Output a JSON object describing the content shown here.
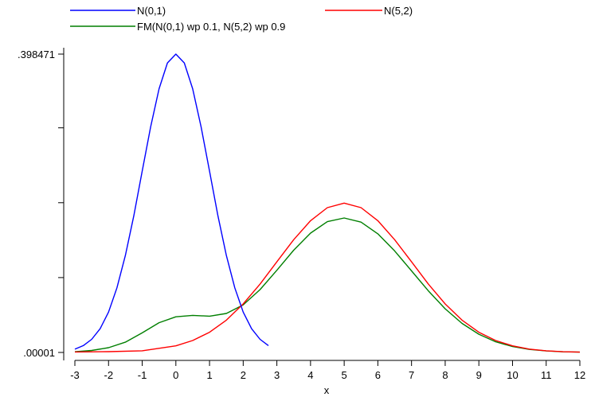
{
  "chart_data": {
    "type": "line",
    "title": "",
    "xlabel": "x",
    "ylabel": "",
    "xlim": [
      -3,
      12
    ],
    "ylim": [
      1e-05,
      0.398471
    ],
    "grid": false,
    "legend_placement": "top",
    "x_ticks": [
      "-3",
      "-2",
      "-1",
      "0",
      "1",
      "2",
      "3",
      "4",
      "5",
      "6",
      "7",
      "8",
      "9",
      "10",
      "11",
      "12"
    ],
    "y_tick_labels": [
      ".398471",
      ".00001"
    ],
    "y_tick_values": [
      0.398471,
      1e-05
    ],
    "y_minor_ticks": [
      0.3,
      0.2,
      0.1
    ],
    "series": [
      {
        "name": "N(0,1)",
        "color": "#0000ff",
        "x": [
          -3,
          -2.75,
          -2.5,
          -2.25,
          -2,
          -1.75,
          -1.5,
          -1.25,
          -1,
          -0.75,
          -0.5,
          -0.25,
          0,
          0.25,
          0.5,
          0.75,
          1,
          1.25,
          1.5,
          1.75,
          2,
          2.25,
          2.5,
          2.75
        ],
        "y": [
          0.0044,
          0.0091,
          0.0175,
          0.0317,
          0.054,
          0.0863,
          0.1295,
          0.1826,
          0.242,
          0.3011,
          0.3521,
          0.3867,
          0.3985,
          0.3867,
          0.3521,
          0.3011,
          0.242,
          0.1826,
          0.1295,
          0.0863,
          0.054,
          0.0317,
          0.0175,
          0.0091
        ]
      },
      {
        "name": "N(5,2)",
        "color": "#ff0000",
        "x": [
          -3,
          -2,
          -1,
          0,
          0.5,
          1,
          1.5,
          2,
          2.5,
          3,
          3.5,
          4,
          4.5,
          5,
          5.5,
          6,
          6.5,
          7,
          7.5,
          8,
          8.5,
          9,
          9.5,
          10,
          10.5,
          11,
          11.5,
          12
        ],
        "y": [
          0.0007,
          0.0011,
          0.0022,
          0.0088,
          0.0159,
          0.027,
          0.0431,
          0.0648,
          0.0913,
          0.121,
          0.1506,
          0.176,
          0.1934,
          0.1995,
          0.1934,
          0.176,
          0.1506,
          0.121,
          0.0913,
          0.0648,
          0.0431,
          0.027,
          0.0159,
          0.0088,
          0.0045,
          0.0022,
          0.001,
          0.0004
        ]
      },
      {
        "name": "FM(N(0,1) wp 0.1, N(5,2) wp 0.9",
        "color": "#007f00",
        "x": [
          -3,
          -2.5,
          -2,
          -1.5,
          -1,
          -0.5,
          0,
          0.5,
          1,
          1.5,
          2,
          2.5,
          3,
          3.5,
          4,
          4.5,
          5,
          5.5,
          6,
          6.5,
          7,
          7.5,
          8,
          8.5,
          9,
          9.5,
          10,
          10.5,
          11,
          11.5,
          12
        ],
        "y": [
          0.001,
          0.0027,
          0.0064,
          0.0137,
          0.0262,
          0.0398,
          0.0476,
          0.0495,
          0.0485,
          0.0521,
          0.0636,
          0.0839,
          0.1098,
          0.1366,
          0.1594,
          0.1747,
          0.1796,
          0.1741,
          0.1584,
          0.1356,
          0.1089,
          0.0822,
          0.0583,
          0.0388,
          0.0243,
          0.0143,
          0.0079,
          0.0041,
          0.002,
          0.0009,
          0.0004
        ]
      }
    ]
  }
}
